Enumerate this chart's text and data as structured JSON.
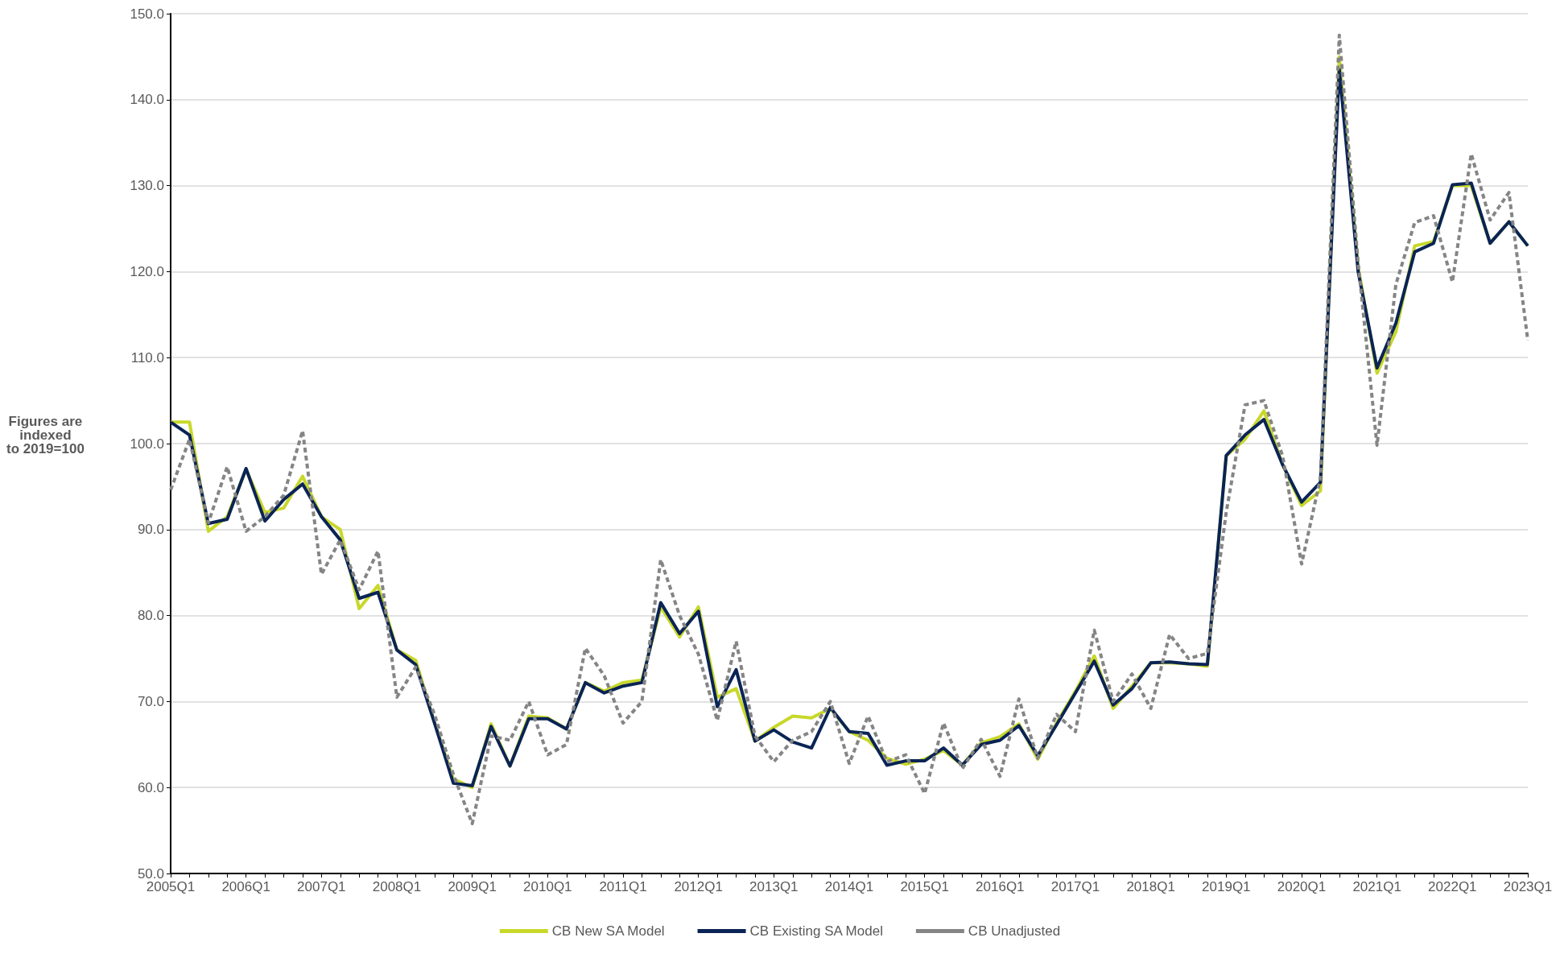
{
  "chart_data": {
    "type": "line",
    "ylabel": "Figures are\nindexed\nto 2019=100",
    "categories": [
      "2005Q1",
      null,
      null,
      null,
      "2006Q1",
      null,
      null,
      null,
      "2007Q1",
      null,
      null,
      null,
      "2008Q1",
      null,
      null,
      null,
      "2009Q1",
      null,
      null,
      null,
      "2010Q1",
      null,
      null,
      null,
      "2011Q1",
      null,
      null,
      null,
      "2012Q1",
      null,
      null,
      null,
      "2013Q1",
      null,
      null,
      null,
      "2014Q1",
      null,
      null,
      null,
      "2015Q1",
      null,
      null,
      null,
      "2016Q1",
      null,
      null,
      null,
      "2017Q1",
      null,
      null,
      null,
      "2018Q1",
      null,
      null,
      null,
      "2019Q1",
      null,
      null,
      null,
      "2020Q1",
      null,
      null,
      null,
      "2021Q1",
      null,
      null,
      null,
      "2022Q1",
      null,
      null,
      null,
      "2023Q1"
    ],
    "series": [
      {
        "name": "CB New SA Model",
        "color": "#c8d82a",
        "line_style": "solid",
        "values": [
          102.5,
          102.5,
          89.8,
          91.5,
          97,
          92,
          92.5,
          96.2,
          91.5,
          90,
          80.8,
          83.5,
          76,
          74.8,
          67.5,
          61,
          60,
          67.4,
          62.5,
          68.3,
          68.1,
          66.8,
          72.2,
          71.2,
          72.2,
          72.5,
          81,
          77.5,
          81,
          70.5,
          71.5,
          65.4,
          67,
          68.3,
          68.1,
          69.2,
          66.5,
          65.5,
          63.4,
          62.7,
          63.3,
          64.3,
          62.6,
          65.2,
          65.9,
          67.4,
          63.3,
          67.5,
          71.2,
          75.3,
          69.2,
          71.8,
          74.5,
          74.5,
          74.4,
          74.1,
          98.6,
          100.5,
          103.8,
          97.5,
          92.8,
          94.5,
          145,
          120.5,
          108.2,
          113,
          123,
          123.5,
          130,
          130,
          123.3,
          125.8,
          123
        ]
      },
      {
        "name": "CB Existing SA Model",
        "color": "#0a2455",
        "line_style": "solid",
        "values": [
          102.5,
          101,
          90.7,
          91.2,
          97.1,
          91,
          93.5,
          95.3,
          91.5,
          88.8,
          82,
          82.7,
          76,
          74.3,
          67.5,
          60.5,
          60.2,
          67.1,
          62.5,
          68,
          68,
          66.8,
          72.2,
          71,
          71.8,
          72.2,
          81.5,
          77.9,
          80.5,
          69.4,
          73.7,
          65.4,
          66.7,
          65.3,
          64.6,
          69.3,
          66.5,
          66.3,
          62.6,
          63.1,
          63.1,
          64.6,
          62.6,
          65,
          65.5,
          67.2,
          63.7,
          67.3,
          71,
          74.7,
          69.6,
          71.5,
          74.5,
          74.6,
          74.4,
          74.3,
          98.6,
          101,
          102.8,
          97.5,
          93.2,
          95.5,
          143.5,
          120,
          108.8,
          114,
          122.3,
          123.3,
          130.1,
          130.3,
          123.3,
          125.8,
          123
        ]
      },
      {
        "name": "CB Unadjusted",
        "color": "#858585",
        "line_style": "dashed",
        "values": [
          94.6,
          100.5,
          90.8,
          97.3,
          89.8,
          91.5,
          94,
          101.5,
          84.8,
          88.8,
          83,
          87.5,
          70.5,
          74,
          68.5,
          61.5,
          55.8,
          66,
          65.5,
          70,
          63.8,
          65,
          76.2,
          73,
          67.5,
          70,
          86.5,
          80,
          75.5,
          67.8,
          77,
          66,
          63,
          65.5,
          66.5,
          70,
          62.8,
          68.3,
          63,
          63.8,
          59.3,
          67.5,
          62.2,
          65.6,
          61.3,
          70.3,
          63.4,
          68.5,
          66.5,
          78.3,
          70,
          73.2,
          69.2,
          77.8,
          75,
          75.6,
          92,
          104.5,
          105,
          98.5,
          86,
          96,
          147.5,
          121,
          99.8,
          118.5,
          125.7,
          126.5,
          118.8,
          133.7,
          126,
          129.2,
          112
        ]
      }
    ],
    "ylim": [
      50,
      150
    ],
    "yticks": [
      {
        "value": 50,
        "label": "50.0"
      },
      {
        "value": 60,
        "label": "60.0"
      },
      {
        "value": 70,
        "label": "70.0"
      },
      {
        "value": 80,
        "label": "80.0"
      },
      {
        "value": 90,
        "label": "90.0"
      },
      {
        "value": 100,
        "label": "100.0"
      },
      {
        "value": 110,
        "label": "110.0"
      },
      {
        "value": 120,
        "label": "120.0"
      },
      {
        "value": 130,
        "label": "130.0"
      },
      {
        "value": 140,
        "label": "140.0"
      },
      {
        "value": 150,
        "label": "150.0"
      }
    ],
    "grid": "y",
    "legend": "bottom",
    "marker": "none"
  }
}
